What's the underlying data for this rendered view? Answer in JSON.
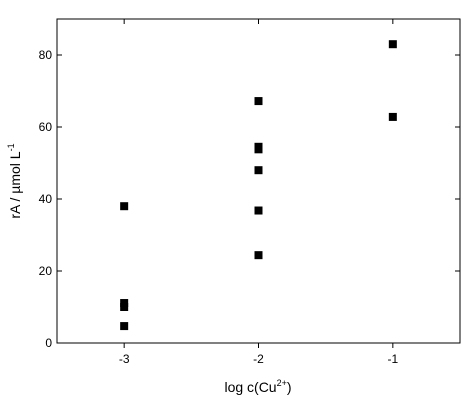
{
  "chart_data": {
    "type": "scatter",
    "x_label": [
      "log c(Cu",
      "2+",
      ")"
    ],
    "y_label": [
      "rA / µmol L",
      "-1"
    ],
    "x": [
      -3,
      -3,
      -3,
      -3,
      -2,
      -2,
      -2,
      -2,
      -2,
      -2,
      -1,
      -1
    ],
    "values": [
      38,
      11.1,
      10,
      4.7,
      67.2,
      54.5,
      53.8,
      48,
      36.8,
      24.4,
      83,
      62.8
    ],
    "color": "#000000",
    "xlim": [
      -3.5,
      -0.5
    ],
    "xticks": [
      -3,
      -2,
      -1
    ],
    "ylim": [
      0,
      90
    ],
    "yticks": [
      0,
      20,
      40,
      60,
      80
    ]
  }
}
